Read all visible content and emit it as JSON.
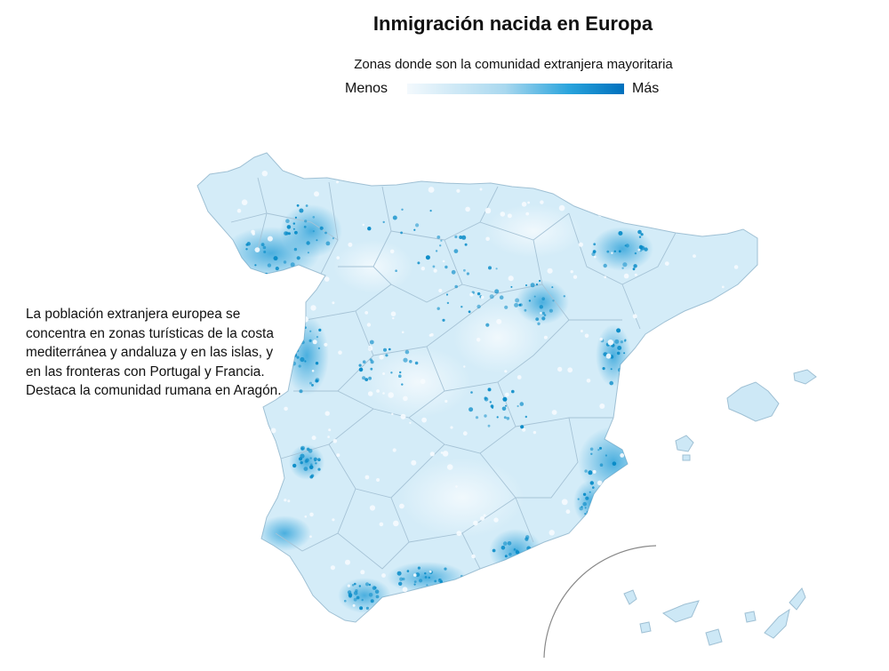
{
  "title": "Inmigración nacida en Europa",
  "legend": {
    "subtitle": "Zonas donde son la comunidad extranjera mayoritaria",
    "min_label": "Menos",
    "max_label": "Más",
    "color_low": "#f0f8fc",
    "color_high": "#0077c0"
  },
  "annotation": "La población extranjera europea se concentra en zonas turísticas de la costa mediterránea y andaluza y en las islas, y en las fronteras con Portugal y Francia. Destaca la comunidad rumana en Aragón.",
  "map": {
    "region": "España",
    "land_fill": "#d2ebf7",
    "border_color": "#a8c4d6",
    "hotspot_color": "#0a8cc8",
    "inset_frame": "Islas Canarias"
  }
}
